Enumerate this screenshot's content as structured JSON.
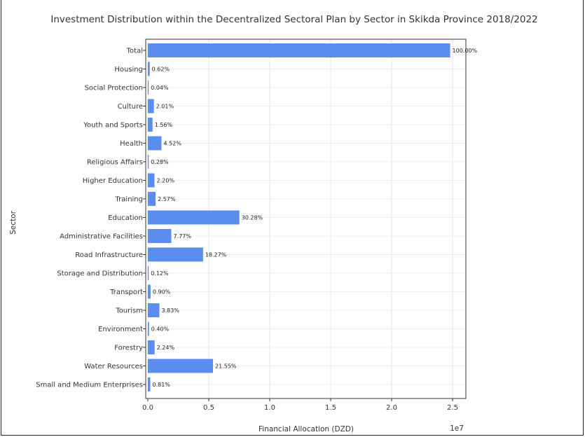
{
  "chart_data": {
    "type": "bar",
    "orientation": "horizontal",
    "title": "Investment Distribution within the Decentralized Sectoral Plan by Sector in Skikda Province 2018/2022",
    "xlabel": "Financial Allocation (DZD)",
    "ylabel": "Sector",
    "x_scale_label": "1e7",
    "xlim": [
      0,
      2.5
    ],
    "x_ticks": [
      "0.0",
      "0.5",
      "1.0",
      "1.5",
      "2.0",
      "2.5"
    ],
    "grid": true,
    "bar_color": "#5b8def",
    "categories": [
      "Total",
      "Housing",
      "Social Protection",
      "Culture",
      "Youth and Sports",
      "Health",
      "Religious Affairs",
      "Higher Education",
      "Training",
      "Education",
      "Administrative Facilities",
      "Road Infrastructure",
      "Storage and Distribution",
      "Transport",
      "Tourism",
      "Environment",
      "Forestry",
      "Water Resources",
      "Small and Medium Enterprises"
    ],
    "values": [
      2.48,
      0.0154,
      0.001,
      0.0499,
      0.0387,
      0.1121,
      0.0069,
      0.0546,
      0.0637,
      0.7509,
      0.1927,
      0.4531,
      0.003,
      0.0223,
      0.095,
      0.0099,
      0.0556,
      0.5345,
      0.0201
    ],
    "labels": [
      "100.00%",
      "0.62%",
      "0.04%",
      "2.01%",
      "1.56%",
      "4.52%",
      "0.28%",
      "2.20%",
      "2.57%",
      "30.28%",
      "7.77%",
      "18.27%",
      "0.12%",
      "0.90%",
      "3.83%",
      "0.40%",
      "2.24%",
      "21.55%",
      "0.81%"
    ]
  }
}
